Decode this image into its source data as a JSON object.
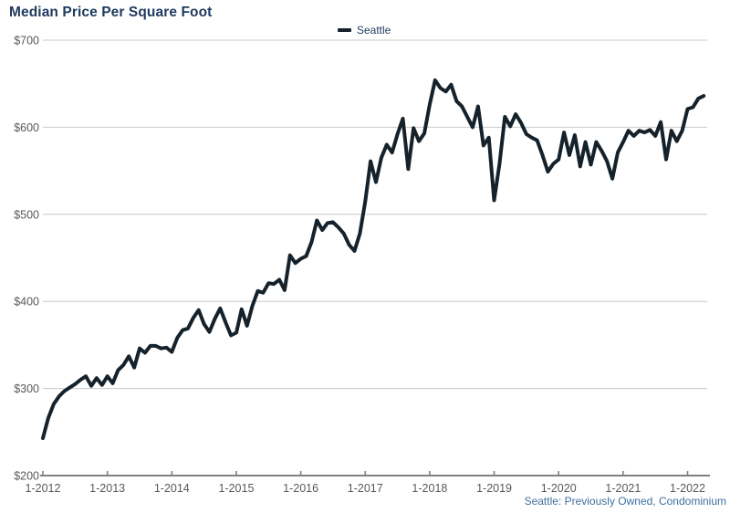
{
  "header": {
    "title": "Median Price Per Square Foot"
  },
  "legend": {
    "label": "Seattle"
  },
  "footer": {
    "source": "Seattle: Previously Owned, Condominium"
  },
  "colors": {
    "line": "#15222b",
    "title_text": "#1e3a5e",
    "legend_text": "#1e3a5e",
    "footer_text": "#3e6fa0",
    "grid": "#c8c8c8",
    "axis": "#808080",
    "tick_label": "#595959",
    "background": "#ffffff"
  },
  "chart_data": {
    "type": "line",
    "title": "Median Price Per Square Foot",
    "legend_position": "top",
    "grid": "horizontal",
    "ylim": [
      200,
      700
    ],
    "y_ticks": [
      700,
      600,
      500,
      400,
      300,
      200
    ],
    "y_tick_labels": [
      "$700",
      "$600",
      "$500",
      "$400",
      "$300",
      "$200"
    ],
    "x_tick_labels": [
      "1-2012",
      "1-2013",
      "1-2014",
      "1-2015",
      "1-2016",
      "1-2017",
      "1-2018",
      "1-2019",
      "1-2020",
      "1-2021",
      "1-2022"
    ],
    "months_per_tick": 12,
    "x_start_label": "1-2012",
    "x_end_label": "4-2022",
    "series": [
      {
        "name": "Seattle",
        "values": [
          243,
          266,
          282,
          291,
          297,
          301,
          305,
          310,
          314,
          303,
          312,
          304,
          314,
          306,
          321,
          327,
          337,
          324,
          346,
          341,
          349,
          349,
          346,
          347,
          342,
          358,
          367,
          369,
          381,
          390,
          374,
          365,
          380,
          392,
          376,
          361,
          364,
          391,
          372,
          395,
          412,
          410,
          421,
          420,
          425,
          413,
          453,
          444,
          449,
          452,
          468,
          493,
          482,
          490,
          491,
          485,
          478,
          465,
          458,
          478,
          515,
          561,
          537,
          565,
          580,
          571,
          592,
          610,
          552,
          599,
          584,
          593,
          626,
          654,
          645,
          641,
          649,
          630,
          624,
          612,
          600,
          624,
          579,
          588,
          516,
          558,
          612,
          601,
          615,
          605,
          592,
          588,
          585,
          568,
          549,
          558,
          563,
          594,
          568,
          591,
          555,
          583,
          557,
          583,
          573,
          561,
          541,
          571,
          583,
          596,
          590,
          596,
          594,
          597,
          590,
          606,
          563,
          596,
          584,
          596,
          621,
          623,
          633,
          636
        ]
      }
    ]
  }
}
